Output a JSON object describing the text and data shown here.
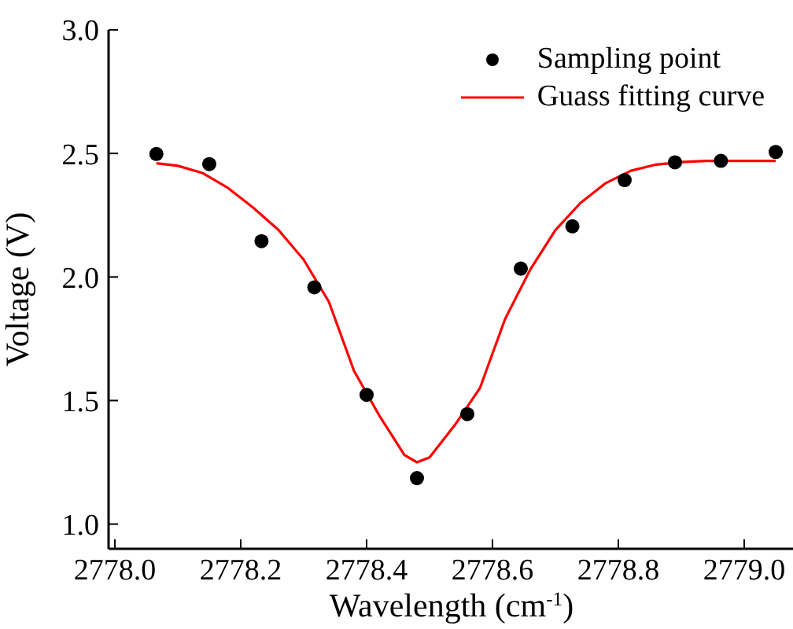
{
  "chart_data": {
    "type": "scatter",
    "xlabel": "Wavelength (cm$^{-1}$)",
    "ylabel": "Voltage (V)",
    "xlim": [
      2777.99,
      2779.08
    ],
    "ylim": [
      0.9,
      3.0
    ],
    "xticks": [
      {
        "value": 2778.0,
        "label": "2778.0"
      },
      {
        "value": 2778.2,
        "label": "2778.2"
      },
      {
        "value": 2778.4,
        "label": "2778.4"
      },
      {
        "value": 2778.6,
        "label": "2778.6"
      },
      {
        "value": 2778.8,
        "label": "2778.8"
      },
      {
        "value": 2779.0,
        "label": "2779.0"
      }
    ],
    "yticks": [
      {
        "value": 1.0,
        "label": "1.0"
      },
      {
        "value": 1.5,
        "label": "1.5"
      },
      {
        "value": 2.0,
        "label": "2.0"
      },
      {
        "value": 2.5,
        "label": "2.5"
      },
      {
        "value": 3.0,
        "label": "3.0"
      }
    ],
    "grid": false,
    "legend": "top right",
    "series": [
      {
        "name": "Sampling point",
        "marker": "circle",
        "color": "#000000",
        "x": [
          2778.066,
          2778.15,
          2778.233,
          2778.317,
          2778.4,
          2778.48,
          2778.56,
          2778.645,
          2778.727,
          2778.81,
          2778.89,
          2778.963,
          2779.05
        ],
        "values": [
          2.498,
          2.457,
          2.145,
          1.958,
          1.523,
          1.186,
          1.445,
          2.034,
          2.205,
          2.392,
          2.464,
          2.47,
          2.506
        ]
      },
      {
        "name": "Guass fitting curve",
        "type": "line",
        "marker": "none",
        "line_style": "solid",
        "color": "#ff0000",
        "x": [
          2778.066,
          2778.1,
          2778.14,
          2778.18,
          2778.22,
          2778.26,
          2778.3,
          2778.34,
          2778.38,
          2778.42,
          2778.46,
          2778.48,
          2778.5,
          2778.54,
          2778.58,
          2778.62,
          2778.66,
          2778.7,
          2778.74,
          2778.78,
          2778.82,
          2778.86,
          2778.9,
          2778.94,
          2778.98,
          2779.05
        ],
        "values": [
          2.46,
          2.45,
          2.42,
          2.36,
          2.28,
          2.19,
          2.07,
          1.9,
          1.62,
          1.44,
          1.28,
          1.25,
          1.27,
          1.4,
          1.55,
          1.83,
          2.03,
          2.19,
          2.3,
          2.38,
          2.43,
          2.455,
          2.465,
          2.47,
          2.47,
          2.47
        ]
      }
    ]
  }
}
